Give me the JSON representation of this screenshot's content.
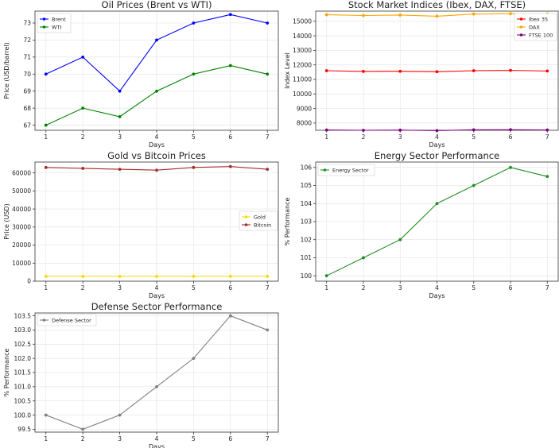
{
  "chart_data": [
    {
      "id": "oil",
      "type": "line",
      "title": "Oil Prices (Brent vs WTI)",
      "xlabel": "Days",
      "ylabel": "Price (USD/barrel)",
      "x": [
        1,
        2,
        3,
        4,
        5,
        6,
        7
      ],
      "ylim": [
        66.7,
        73.7
      ],
      "yticks": [
        67,
        68,
        69,
        70,
        71,
        72,
        73
      ],
      "grid": true,
      "legend": "top-left",
      "series": [
        {
          "name": "Brent",
          "color": "#0000ff",
          "values": [
            70,
            71,
            69,
            72,
            73,
            73.5,
            73
          ]
        },
        {
          "name": "WTI",
          "color": "#008000",
          "values": [
            67,
            68,
            67.5,
            69,
            70,
            70.5,
            70
          ]
        }
      ]
    },
    {
      "id": "stocks",
      "type": "line",
      "title": "Stock Market Indices (Ibex, DAX, FTSE)",
      "xlabel": "Days",
      "ylabel": "Index Level",
      "x": [
        1,
        2,
        3,
        4,
        5,
        6,
        7
      ],
      "ylim": [
        7500,
        15700
      ],
      "yticks": [
        8000,
        9000,
        10000,
        11000,
        12000,
        13000,
        14000,
        15000
      ],
      "grid": true,
      "legend": "top-right",
      "series": [
        {
          "name": "Ibex 35",
          "color": "#ff0000",
          "values": [
            11600,
            11550,
            11560,
            11530,
            11600,
            11620,
            11580
          ]
        },
        {
          "name": "DAX",
          "color": "#ffa500",
          "values": [
            15450,
            15400,
            15430,
            15350,
            15500,
            15520,
            15500
          ]
        },
        {
          "name": "FTSE 100",
          "color": "#800080",
          "values": [
            7520,
            7500,
            7510,
            7480,
            7530,
            7540,
            7520
          ]
        }
      ]
    },
    {
      "id": "gold",
      "type": "line",
      "title": "Gold vs Bitcoin Prices",
      "xlabel": "Days",
      "ylabel": "Price (USD)",
      "x": [
        1,
        2,
        3,
        4,
        5,
        6,
        7
      ],
      "ylim": [
        0,
        66000
      ],
      "yticks": [
        0,
        10000,
        20000,
        30000,
        40000,
        50000,
        60000
      ],
      "grid": true,
      "legend": "center-right",
      "series": [
        {
          "name": "Gold",
          "color": "#ffd700",
          "values": [
            2700,
            2700,
            2700,
            2700,
            2700,
            2700,
            2700
          ]
        },
        {
          "name": "Bitcoin",
          "color": "#a52a2a",
          "values": [
            63000,
            62500,
            62000,
            61500,
            63000,
            63500,
            62000
          ]
        }
      ]
    },
    {
      "id": "energy",
      "type": "line",
      "title": "Energy Sector Performance",
      "xlabel": "Days",
      "ylabel": "% Performance",
      "x": [
        1,
        2,
        3,
        4,
        5,
        6,
        7
      ],
      "ylim": [
        99.7,
        106.3
      ],
      "yticks": [
        100,
        101,
        102,
        103,
        104,
        105,
        106
      ],
      "grid": true,
      "legend": "top-left",
      "series": [
        {
          "name": "Energy Sector",
          "color": "#228b22",
          "values": [
            100,
            101,
            102,
            104,
            105,
            106,
            105.5
          ]
        }
      ]
    },
    {
      "id": "defense",
      "type": "line",
      "title": "Defense Sector Performance",
      "xlabel": "Days",
      "ylabel": "% Performance",
      "x": [
        1,
        2,
        3,
        4,
        5,
        6,
        7
      ],
      "ylim": [
        99.4,
        103.6
      ],
      "yticks": [
        99.5,
        100.0,
        100.5,
        101.0,
        101.5,
        102.0,
        102.5,
        103.0,
        103.5
      ],
      "ytick_labels": [
        "99.5",
        "100.0",
        "100.5",
        "101.0",
        "101.5",
        "102.0",
        "102.5",
        "103.0",
        "103.5"
      ],
      "grid": true,
      "legend": "top-left",
      "series": [
        {
          "name": "Defense Sector",
          "color": "#808080",
          "values": [
            100,
            99.5,
            100,
            101,
            102,
            103.5,
            103
          ]
        }
      ]
    }
  ]
}
